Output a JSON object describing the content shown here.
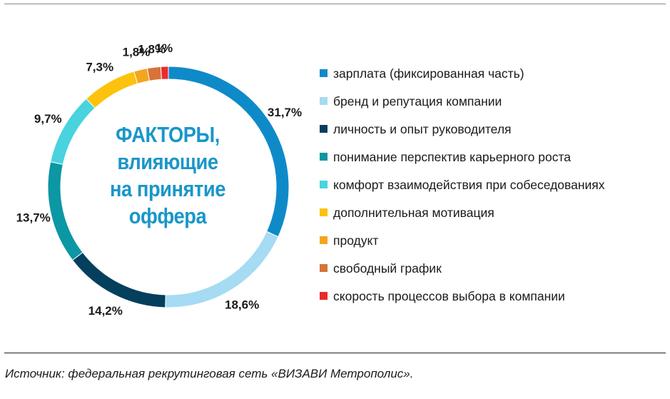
{
  "chart_data": {
    "type": "pie",
    "title": "ФАКТОРЫ, влияющие на принятие оффера",
    "title_lines": [
      "ФАКТОРЫ,",
      "влияющие",
      "на принятие",
      "оффера"
    ],
    "legend_position": "right",
    "slices": [
      {
        "label": "зарплата (фиксированная часть)",
        "value": 31.7,
        "value_label": "31,7%",
        "color": "#0f8ac8"
      },
      {
        "label": "бренд и репутация компании",
        "value": 18.6,
        "value_label": "18,6%",
        "color": "#a5dbf3"
      },
      {
        "label": "личность и опыт руководителя",
        "value": 14.2,
        "value_label": "14,2%",
        "color": "#053f5e"
      },
      {
        "label": "понимание перспектив карьерного роста",
        "value": 13.7,
        "value_label": "13,7%",
        "color": "#0b97a3"
      },
      {
        "label": "комфорт взаимодействия при собеседованиях",
        "value": 9.7,
        "value_label": "9,7%",
        "color": "#48d3df"
      },
      {
        "label": "дополнительная мотивация",
        "value": 7.3,
        "value_label": "7,3%",
        "color": "#fcc20d"
      },
      {
        "label": "продукт",
        "value": 1.8,
        "value_label": "1,8%",
        "color": "#f4a51f"
      },
      {
        "label": "свободный график",
        "value": 1.8,
        "value_label": "1,8%",
        "color": "#d7733a"
      },
      {
        "label": "скорость процессов выбора в компании",
        "value": 1.0,
        "value_label": "1%",
        "color": "#ec2a2a"
      }
    ]
  },
  "source": "Источник: федеральная рекрутинговая сеть «ВИЗАВИ Метрополис»."
}
